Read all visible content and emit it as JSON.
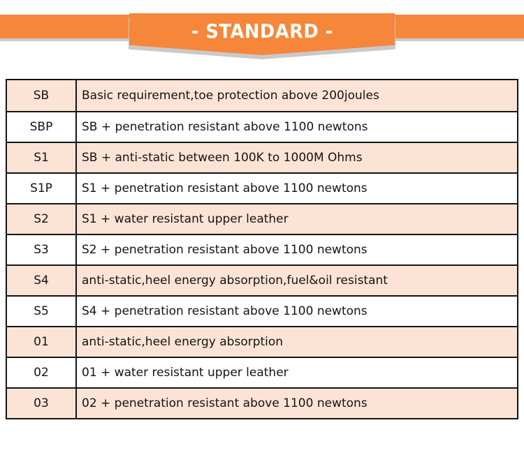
{
  "banner": {
    "title": "- STANDARD -"
  },
  "colors": {
    "orange": "#F5863A",
    "shadow": "#C9C9C9",
    "peach": "#FBE4D5",
    "line": "#141414",
    "page_bg": "#FFFFFF"
  },
  "table": {
    "rows": [
      {
        "code": "SB",
        "description": "Basic requirement,toe protection above 200joules"
      },
      {
        "code": "SBP",
        "description": "SB + penetration resistant above 1100 newtons"
      },
      {
        "code": "S1",
        "description": "SB + anti-static between 100K to 1000M Ohms"
      },
      {
        "code": "S1P",
        "description": "S1 + penetration resistant above 1100 newtons"
      },
      {
        "code": "S2",
        "description": "S1 + water resistant upper leather"
      },
      {
        "code": "S3",
        "description": "S2 + penetration resistant above 1100 newtons"
      },
      {
        "code": "S4",
        "description": "anti-static,heel energy absorption,fuel&oil resistant"
      },
      {
        "code": "S5",
        "description": "S4 + penetration resistant above 1100 newtons"
      },
      {
        "code": "01",
        "description": "anti-static,heel energy absorption"
      },
      {
        "code": "02",
        "description": "01 + water resistant upper leather"
      },
      {
        "code": "03",
        "description": "02 + penetration resistant above 1100 newtons"
      }
    ]
  }
}
